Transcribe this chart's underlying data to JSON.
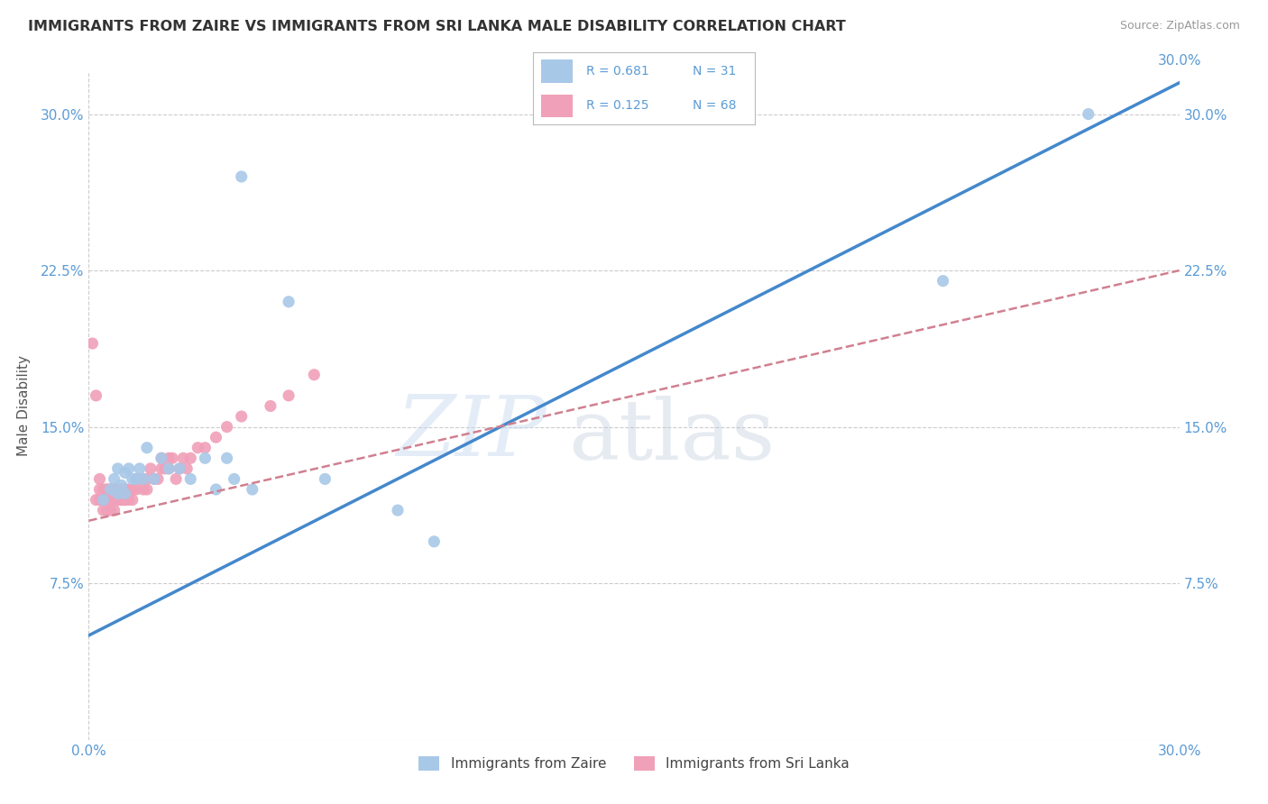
{
  "title": "IMMIGRANTS FROM ZAIRE VS IMMIGRANTS FROM SRI LANKA MALE DISABILITY CORRELATION CHART",
  "source": "Source: ZipAtlas.com",
  "ylabel": "Male Disability",
  "xlim": [
    0.0,
    0.3
  ],
  "ylim": [
    0.0,
    0.32
  ],
  "xticks": [
    0.0,
    0.05,
    0.1,
    0.15,
    0.2,
    0.25,
    0.3
  ],
  "xticklabels_bottom": [
    "0.0%",
    "",
    "",
    "",
    "",
    "",
    "30.0%"
  ],
  "xticklabels_top": [
    "",
    "",
    "",
    "",
    "",
    "",
    ""
  ],
  "yticks": [
    0.0,
    0.075,
    0.15,
    0.225,
    0.3
  ],
  "yticklabels": [
    "",
    "7.5%",
    "15.0%",
    "22.5%",
    "30.0%"
  ],
  "R_zaire": 0.681,
  "N_zaire": 31,
  "R_srilanka": 0.125,
  "N_srilanka": 68,
  "color_zaire": "#A8C8E8",
  "color_srilanka": "#F0A0B8",
  "color_zaire_line": "#4488CC",
  "color_srilanka_line": "#D08090",
  "color_axis_labels": "#5B9BD5",
  "color_title": "#333333",
  "background_color": "#FFFFFF",
  "watermark": "ZIPatlas",
  "grid_color": "#CCCCCC",
  "zaire_x": [
    0.004,
    0.006,
    0.007,
    0.008,
    0.008,
    0.009,
    0.01,
    0.01,
    0.011,
    0.012,
    0.013,
    0.014,
    0.015,
    0.016,
    0.018,
    0.02,
    0.022,
    0.025,
    0.028,
    0.032,
    0.035,
    0.038,
    0.04,
    0.042,
    0.045,
    0.055,
    0.065,
    0.085,
    0.095,
    0.235,
    0.275
  ],
  "zaire_y": [
    0.115,
    0.12,
    0.125,
    0.118,
    0.13,
    0.122,
    0.128,
    0.118,
    0.13,
    0.125,
    0.125,
    0.13,
    0.125,
    0.14,
    0.125,
    0.135,
    0.13,
    0.13,
    0.125,
    0.135,
    0.12,
    0.135,
    0.125,
    0.27,
    0.12,
    0.21,
    0.125,
    0.11,
    0.095,
    0.22,
    0.3
  ],
  "srilanka_x": [
    0.001,
    0.002,
    0.002,
    0.003,
    0.003,
    0.003,
    0.004,
    0.004,
    0.004,
    0.005,
    0.005,
    0.005,
    0.005,
    0.006,
    0.006,
    0.006,
    0.006,
    0.006,
    0.007,
    0.007,
    0.007,
    0.007,
    0.008,
    0.008,
    0.008,
    0.008,
    0.009,
    0.009,
    0.009,
    0.009,
    0.01,
    0.01,
    0.01,
    0.01,
    0.011,
    0.011,
    0.012,
    0.012,
    0.012,
    0.013,
    0.013,
    0.014,
    0.015,
    0.015,
    0.016,
    0.016,
    0.017,
    0.018,
    0.019,
    0.02,
    0.02,
    0.021,
    0.022,
    0.022,
    0.023,
    0.024,
    0.025,
    0.026,
    0.027,
    0.028,
    0.03,
    0.032,
    0.035,
    0.038,
    0.042,
    0.05,
    0.055,
    0.062
  ],
  "srilanka_y": [
    0.19,
    0.165,
    0.115,
    0.125,
    0.115,
    0.12,
    0.12,
    0.115,
    0.11,
    0.12,
    0.115,
    0.11,
    0.12,
    0.12,
    0.115,
    0.12,
    0.115,
    0.11,
    0.115,
    0.12,
    0.115,
    0.11,
    0.12,
    0.115,
    0.12,
    0.115,
    0.115,
    0.12,
    0.115,
    0.12,
    0.12,
    0.115,
    0.12,
    0.115,
    0.12,
    0.115,
    0.12,
    0.115,
    0.12,
    0.125,
    0.12,
    0.125,
    0.125,
    0.12,
    0.125,
    0.12,
    0.13,
    0.125,
    0.125,
    0.13,
    0.135,
    0.13,
    0.13,
    0.135,
    0.135,
    0.125,
    0.13,
    0.135,
    0.13,
    0.135,
    0.14,
    0.14,
    0.145,
    0.15,
    0.155,
    0.16,
    0.165,
    0.175
  ],
  "zaire_line_x0": 0.0,
  "zaire_line_y0": 0.05,
  "zaire_line_x1": 0.3,
  "zaire_line_y1": 0.315,
  "srilanka_line_x0": 0.0,
  "srilanka_line_y0": 0.105,
  "srilanka_line_x1": 0.3,
  "srilanka_line_y1": 0.225
}
